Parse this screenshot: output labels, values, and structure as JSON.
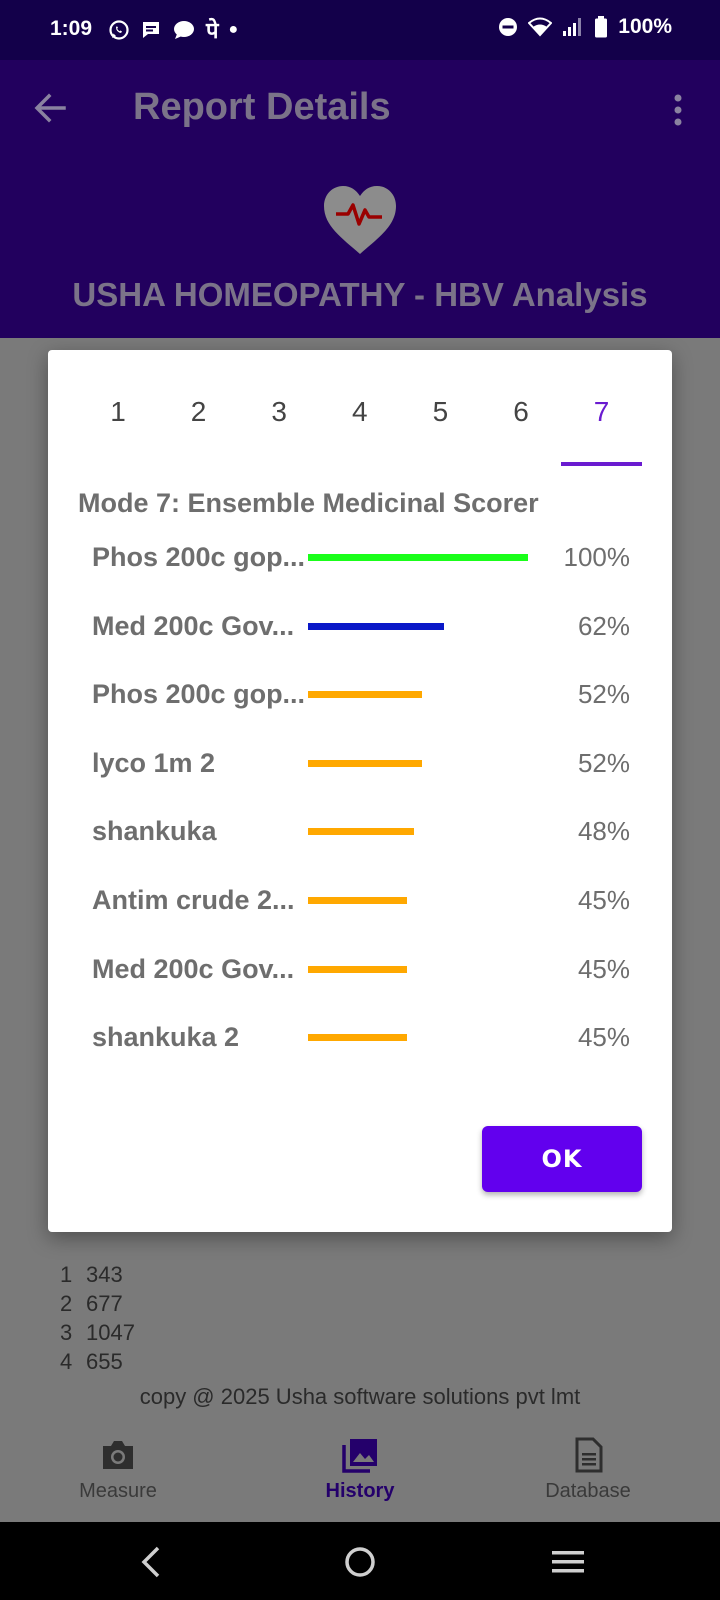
{
  "status_bar": {
    "time": "1:09",
    "battery": "100%",
    "left_icons": [
      "whatsapp-icon",
      "message-icon",
      "chat-icon",
      "phonepe-icon",
      "dot-icon"
    ],
    "right_icons": [
      "dnd-icon",
      "wifi-icon",
      "signal-icon",
      "battery-icon"
    ]
  },
  "header": {
    "title": "Report Details",
    "subtitle": "USHA HOMEOPATHY - HBV Analysis",
    "back_icon": "arrow-back-icon",
    "menu_icon": "more-vert-icon",
    "logo_icon": "heart-pulse-icon"
  },
  "background": {
    "list": [
      {
        "index": "1",
        "value": "343"
      },
      {
        "index": "2",
        "value": "677"
      },
      {
        "index": "3",
        "value": "1047"
      },
      {
        "index": "4",
        "value": "655"
      }
    ],
    "copyright": "copy @ 2025 Usha software solutions pvt lmt"
  },
  "bottom_nav": {
    "items": [
      {
        "label": "Measure",
        "icon": "camera-icon"
      },
      {
        "label": "History",
        "icon": "photo-library-icon"
      },
      {
        "label": "Database",
        "icon": "database-icon"
      }
    ],
    "active": "History"
  },
  "dialog": {
    "tabs": [
      "1",
      "2",
      "3",
      "4",
      "5",
      "6",
      "7"
    ],
    "active_tab": "7",
    "mode_title": "Mode 7: Ensemble Medicinal Scorer",
    "rows": [
      {
        "label": "Phos 200c gop...",
        "percent": 100,
        "percent_text": "100%",
        "color": "#1aff1a"
      },
      {
        "label": "Med 200c Gov...",
        "percent": 62,
        "percent_text": "62%",
        "color": "#0a18c8"
      },
      {
        "label": "Phos 200c gop...",
        "percent": 52,
        "percent_text": "52%",
        "color": "#ffa800"
      },
      {
        "label": "lyco 1m 2",
        "percent": 52,
        "percent_text": "52%",
        "color": "#ffa800"
      },
      {
        "label": "shankuka",
        "percent": 48,
        "percent_text": "48%",
        "color": "#ffa800"
      },
      {
        "label": "Antim crude 2...",
        "percent": 45,
        "percent_text": "45%",
        "color": "#ffa800"
      },
      {
        "label": "Med 200c Gov...",
        "percent": 45,
        "percent_text": "45%",
        "color": "#ffa800"
      },
      {
        "label": "shankuka 2",
        "percent": 45,
        "percent_text": "45%",
        "color": "#ffa800"
      }
    ],
    "ok_label": "OK"
  },
  "colors": {
    "status_bar_bg": "#13004a",
    "header_bg": "#22005e",
    "accent": "#6a1bd0",
    "button_bg": "#6200ee",
    "scrim_bg": "#7a7a7a"
  }
}
